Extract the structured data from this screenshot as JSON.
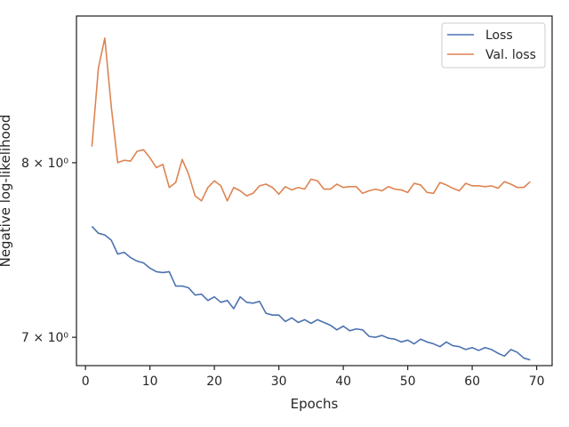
{
  "chart_data": {
    "type": "line",
    "xlabel": "Epochs",
    "ylabel": "Negative log-likelihood",
    "y_scale": "log",
    "grid": false,
    "legend_position": "top-right",
    "xlim": [
      -1.4,
      72.4
    ],
    "ylim": [
      6.85,
      8.95
    ],
    "x_ticks": [
      0,
      10,
      20,
      30,
      40,
      50,
      60,
      70
    ],
    "x_tick_labels": [
      "0",
      "10",
      "20",
      "30",
      "40",
      "50",
      "60",
      "70"
    ],
    "y_ticks": [
      7,
      8
    ],
    "y_tick_labels": [
      "7 × 10⁰",
      "8 × 10⁰"
    ],
    "x": [
      1,
      2,
      3,
      4,
      5,
      6,
      7,
      8,
      9,
      10,
      11,
      12,
      13,
      14,
      15,
      16,
      17,
      18,
      19,
      20,
      21,
      22,
      23,
      24,
      25,
      26,
      27,
      28,
      29,
      30,
      31,
      32,
      33,
      34,
      35,
      36,
      37,
      38,
      39,
      40,
      41,
      42,
      43,
      44,
      45,
      46,
      47,
      48,
      49,
      50,
      51,
      52,
      53,
      54,
      55,
      56,
      57,
      58,
      59,
      60,
      61,
      62,
      63,
      64,
      65,
      66,
      67,
      68,
      69
    ],
    "series": [
      {
        "name": "Loss",
        "color": "#4c72b0",
        "values": [
          7.62,
          7.58,
          7.57,
          7.54,
          7.46,
          7.47,
          7.44,
          7.42,
          7.41,
          7.38,
          7.36,
          7.355,
          7.36,
          7.28,
          7.28,
          7.27,
          7.23,
          7.235,
          7.2,
          7.22,
          7.19,
          7.2,
          7.155,
          7.22,
          7.19,
          7.185,
          7.195,
          7.13,
          7.12,
          7.12,
          7.085,
          7.105,
          7.08,
          7.095,
          7.075,
          7.095,
          7.08,
          7.065,
          7.04,
          7.06,
          7.035,
          7.045,
          7.04,
          7.005,
          7.0,
          7.01,
          6.995,
          6.99,
          6.975,
          6.985,
          6.965,
          6.99,
          6.975,
          6.965,
          6.95,
          6.975,
          6.955,
          6.95,
          6.935,
          6.945,
          6.93,
          6.945,
          6.935,
          6.915,
          6.9,
          6.935,
          6.92,
          6.89,
          6.88
        ]
      },
      {
        "name": "Val. loss",
        "color": "#dd8452",
        "values": [
          8.1,
          8.6,
          8.8,
          8.35,
          8.0,
          8.015,
          8.01,
          8.07,
          8.08,
          8.03,
          7.97,
          7.99,
          7.85,
          7.88,
          8.02,
          7.93,
          7.8,
          7.77,
          7.85,
          7.89,
          7.86,
          7.77,
          7.85,
          7.83,
          7.8,
          7.815,
          7.86,
          7.87,
          7.85,
          7.81,
          7.855,
          7.835,
          7.85,
          7.84,
          7.9,
          7.89,
          7.84,
          7.84,
          7.87,
          7.85,
          7.855,
          7.855,
          7.815,
          7.83,
          7.84,
          7.83,
          7.855,
          7.84,
          7.835,
          7.82,
          7.875,
          7.865,
          7.82,
          7.815,
          7.88,
          7.865,
          7.845,
          7.83,
          7.875,
          7.86,
          7.86,
          7.855,
          7.86,
          7.845,
          7.885,
          7.87,
          7.85,
          7.85,
          7.885
        ]
      }
    ]
  }
}
